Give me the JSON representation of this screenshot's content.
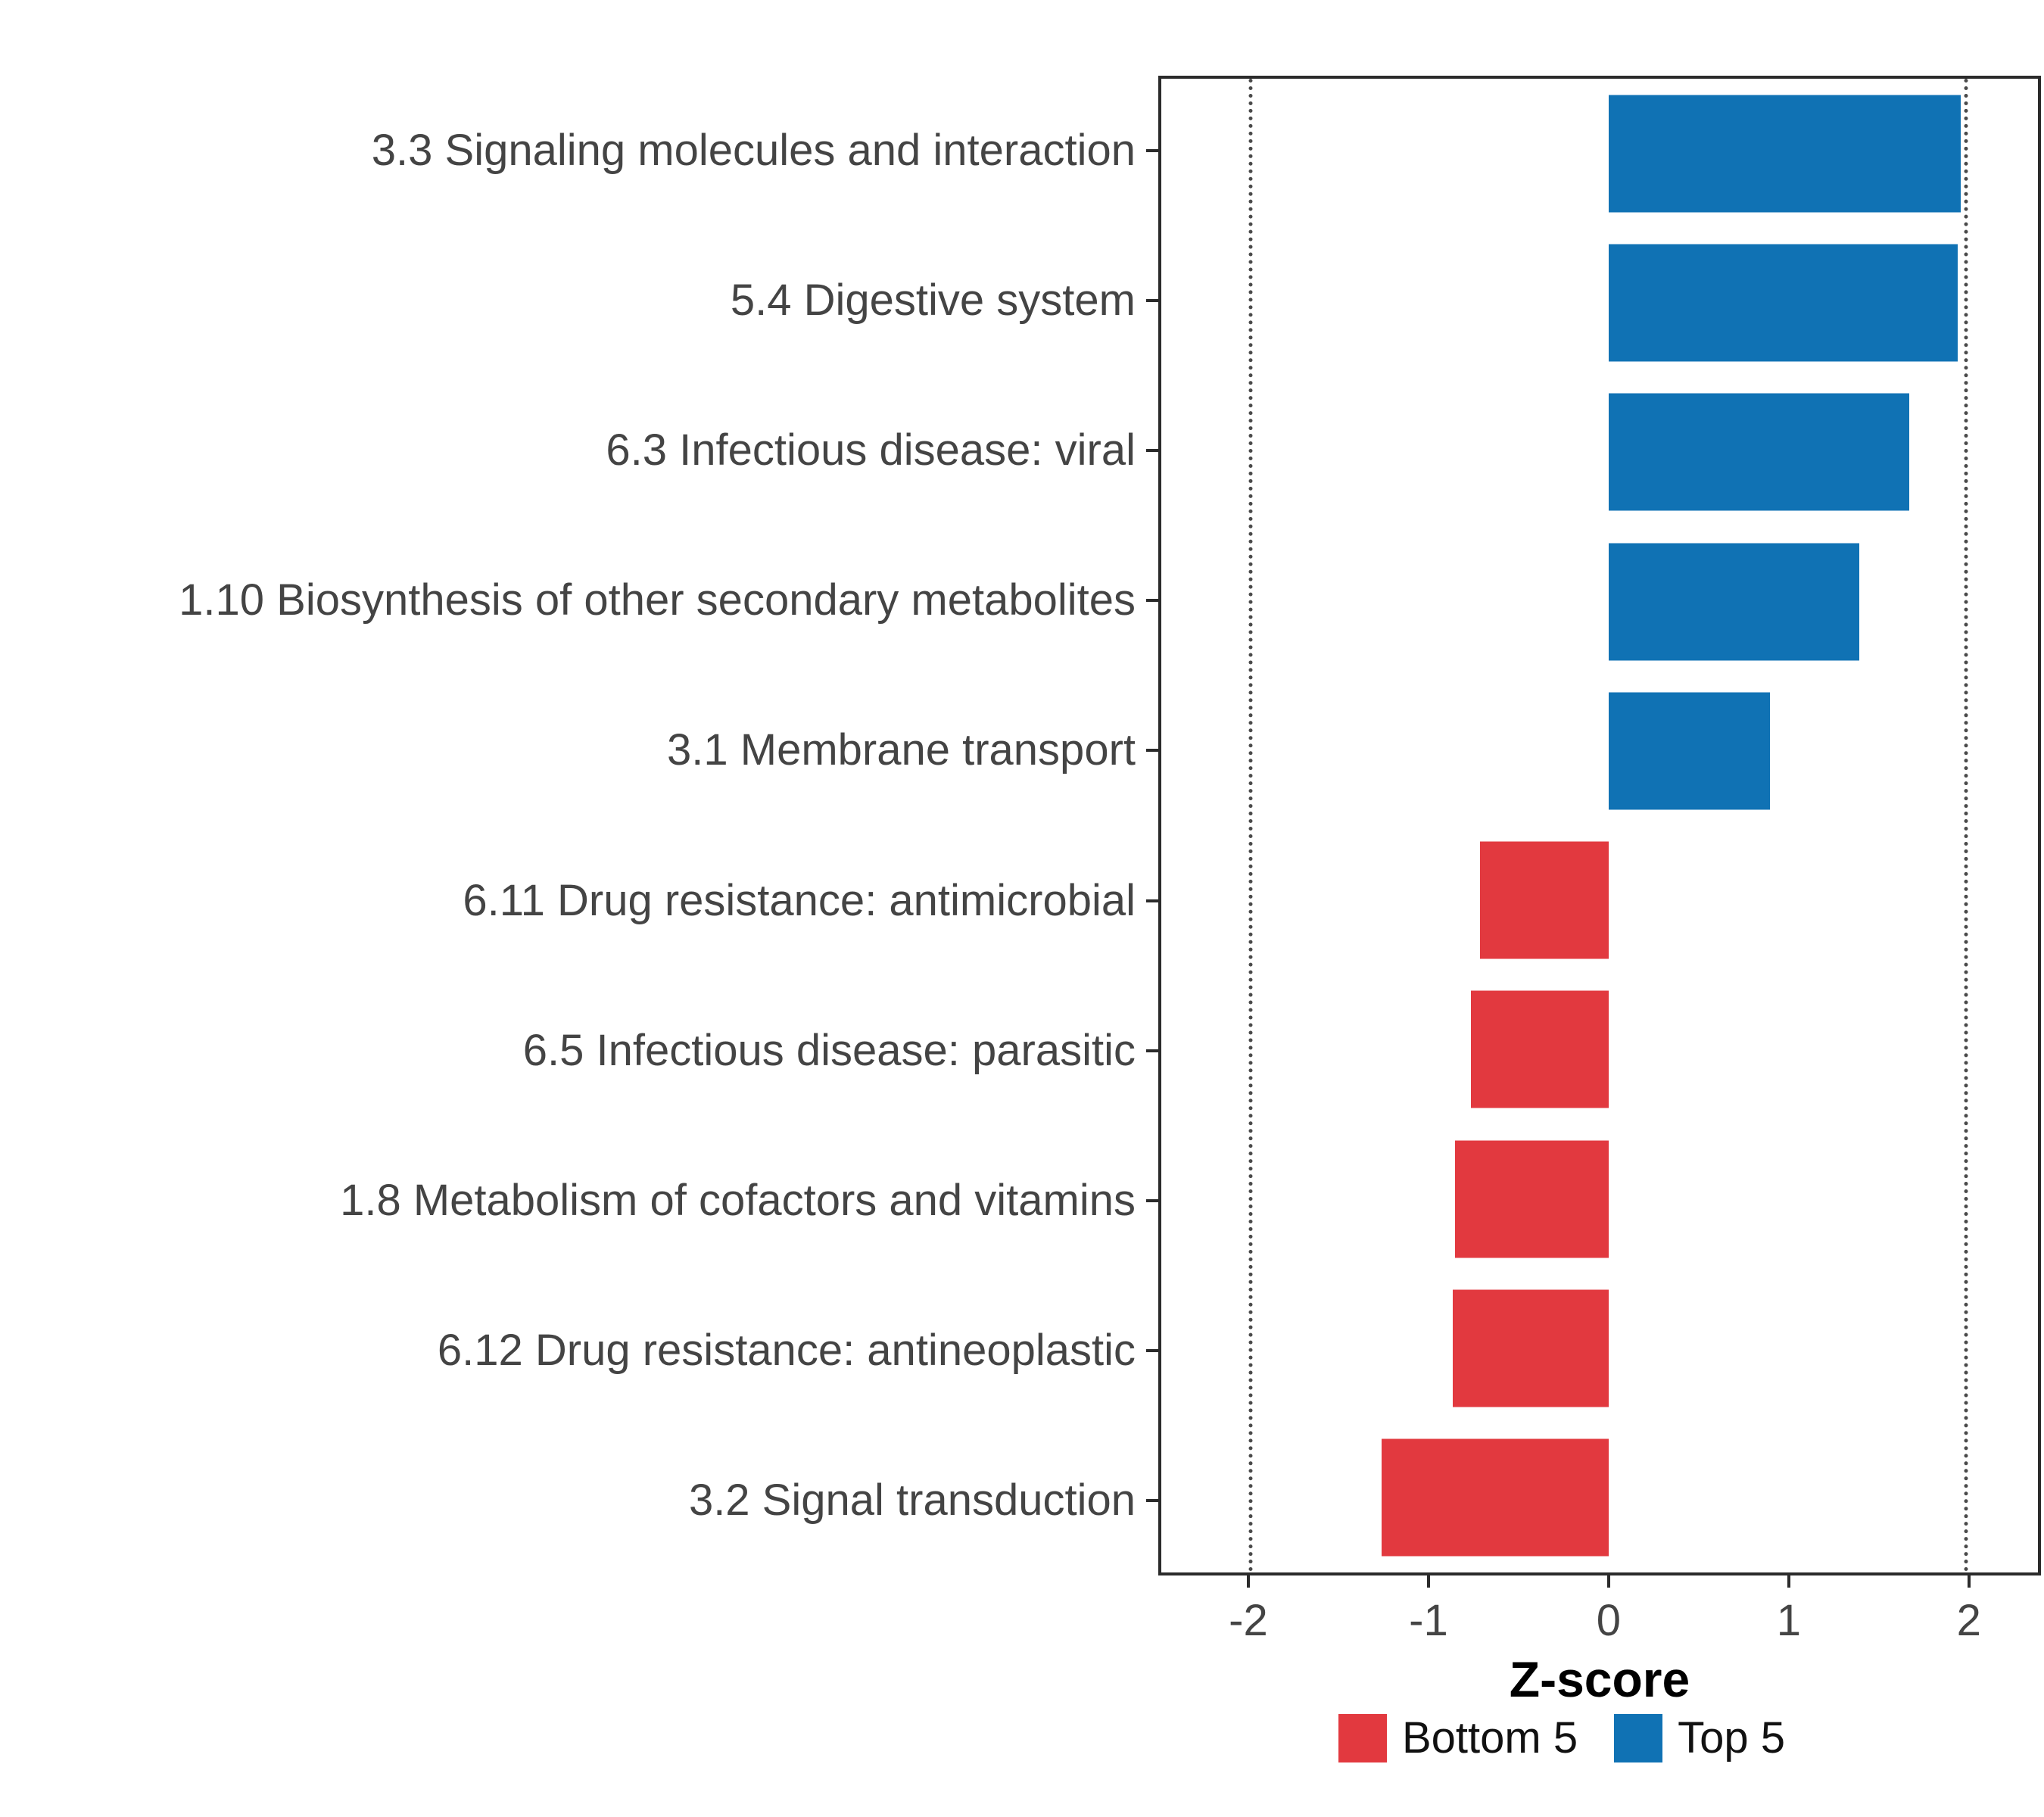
{
  "chart_data": {
    "type": "bar",
    "orientation": "horizontal",
    "title": "",
    "xlabel": "Z-score",
    "ylabel": "",
    "xlim": [
      -2.5,
      2.4
    ],
    "xticks": [
      -2,
      -1,
      0,
      1,
      2
    ],
    "reference_lines": [
      -2,
      2
    ],
    "grid": false,
    "legend_position": "bottom",
    "categories": [
      "3.3 Signaling molecules and interaction",
      "5.4 Digestive system",
      "6.3 Infectious disease: viral",
      "1.10 Biosynthesis of other secondary metabolites",
      "3.1 Membrane transport",
      "6.11 Drug resistance: antimicrobial",
      "6.5 Infectious disease: parasitic",
      "1.8 Metabolism of cofactors and vitamins",
      "6.12 Drug resistance: antineoplastic",
      "3.2 Signal transduction"
    ],
    "values": [
      1.97,
      1.95,
      1.68,
      1.4,
      0.9,
      -0.72,
      -0.77,
      -0.86,
      -0.87,
      -1.27
    ],
    "groups": [
      "Top 5",
      "Top 5",
      "Top 5",
      "Top 5",
      "Top 5",
      "Bottom 5",
      "Bottom 5",
      "Bottom 5",
      "Bottom 5",
      "Bottom 5"
    ],
    "legend": [
      {
        "label": "Bottom 5",
        "color": "#E2393F"
      },
      {
        "label": "Top 5",
        "color": "#1072B4"
      }
    ]
  },
  "colors": {
    "bottom5": "#E2393F",
    "top5": "#1072B4",
    "axis_text": "#444444",
    "panel_border": "#2b2b2b",
    "reference_line": "#4a4a4a",
    "background": "#ffffff"
  }
}
